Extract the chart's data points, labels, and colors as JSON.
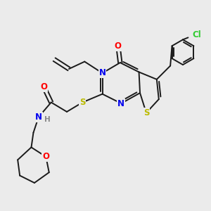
{
  "background_color": "#ebebeb",
  "bond_color": "#1a1a1a",
  "atom_colors": {
    "N": "#0000ee",
    "O": "#ff0000",
    "S": "#bbbb00",
    "Cl": "#33cc33",
    "H": "#888888"
  },
  "font_size_atom": 8.5,
  "lw": 1.4
}
